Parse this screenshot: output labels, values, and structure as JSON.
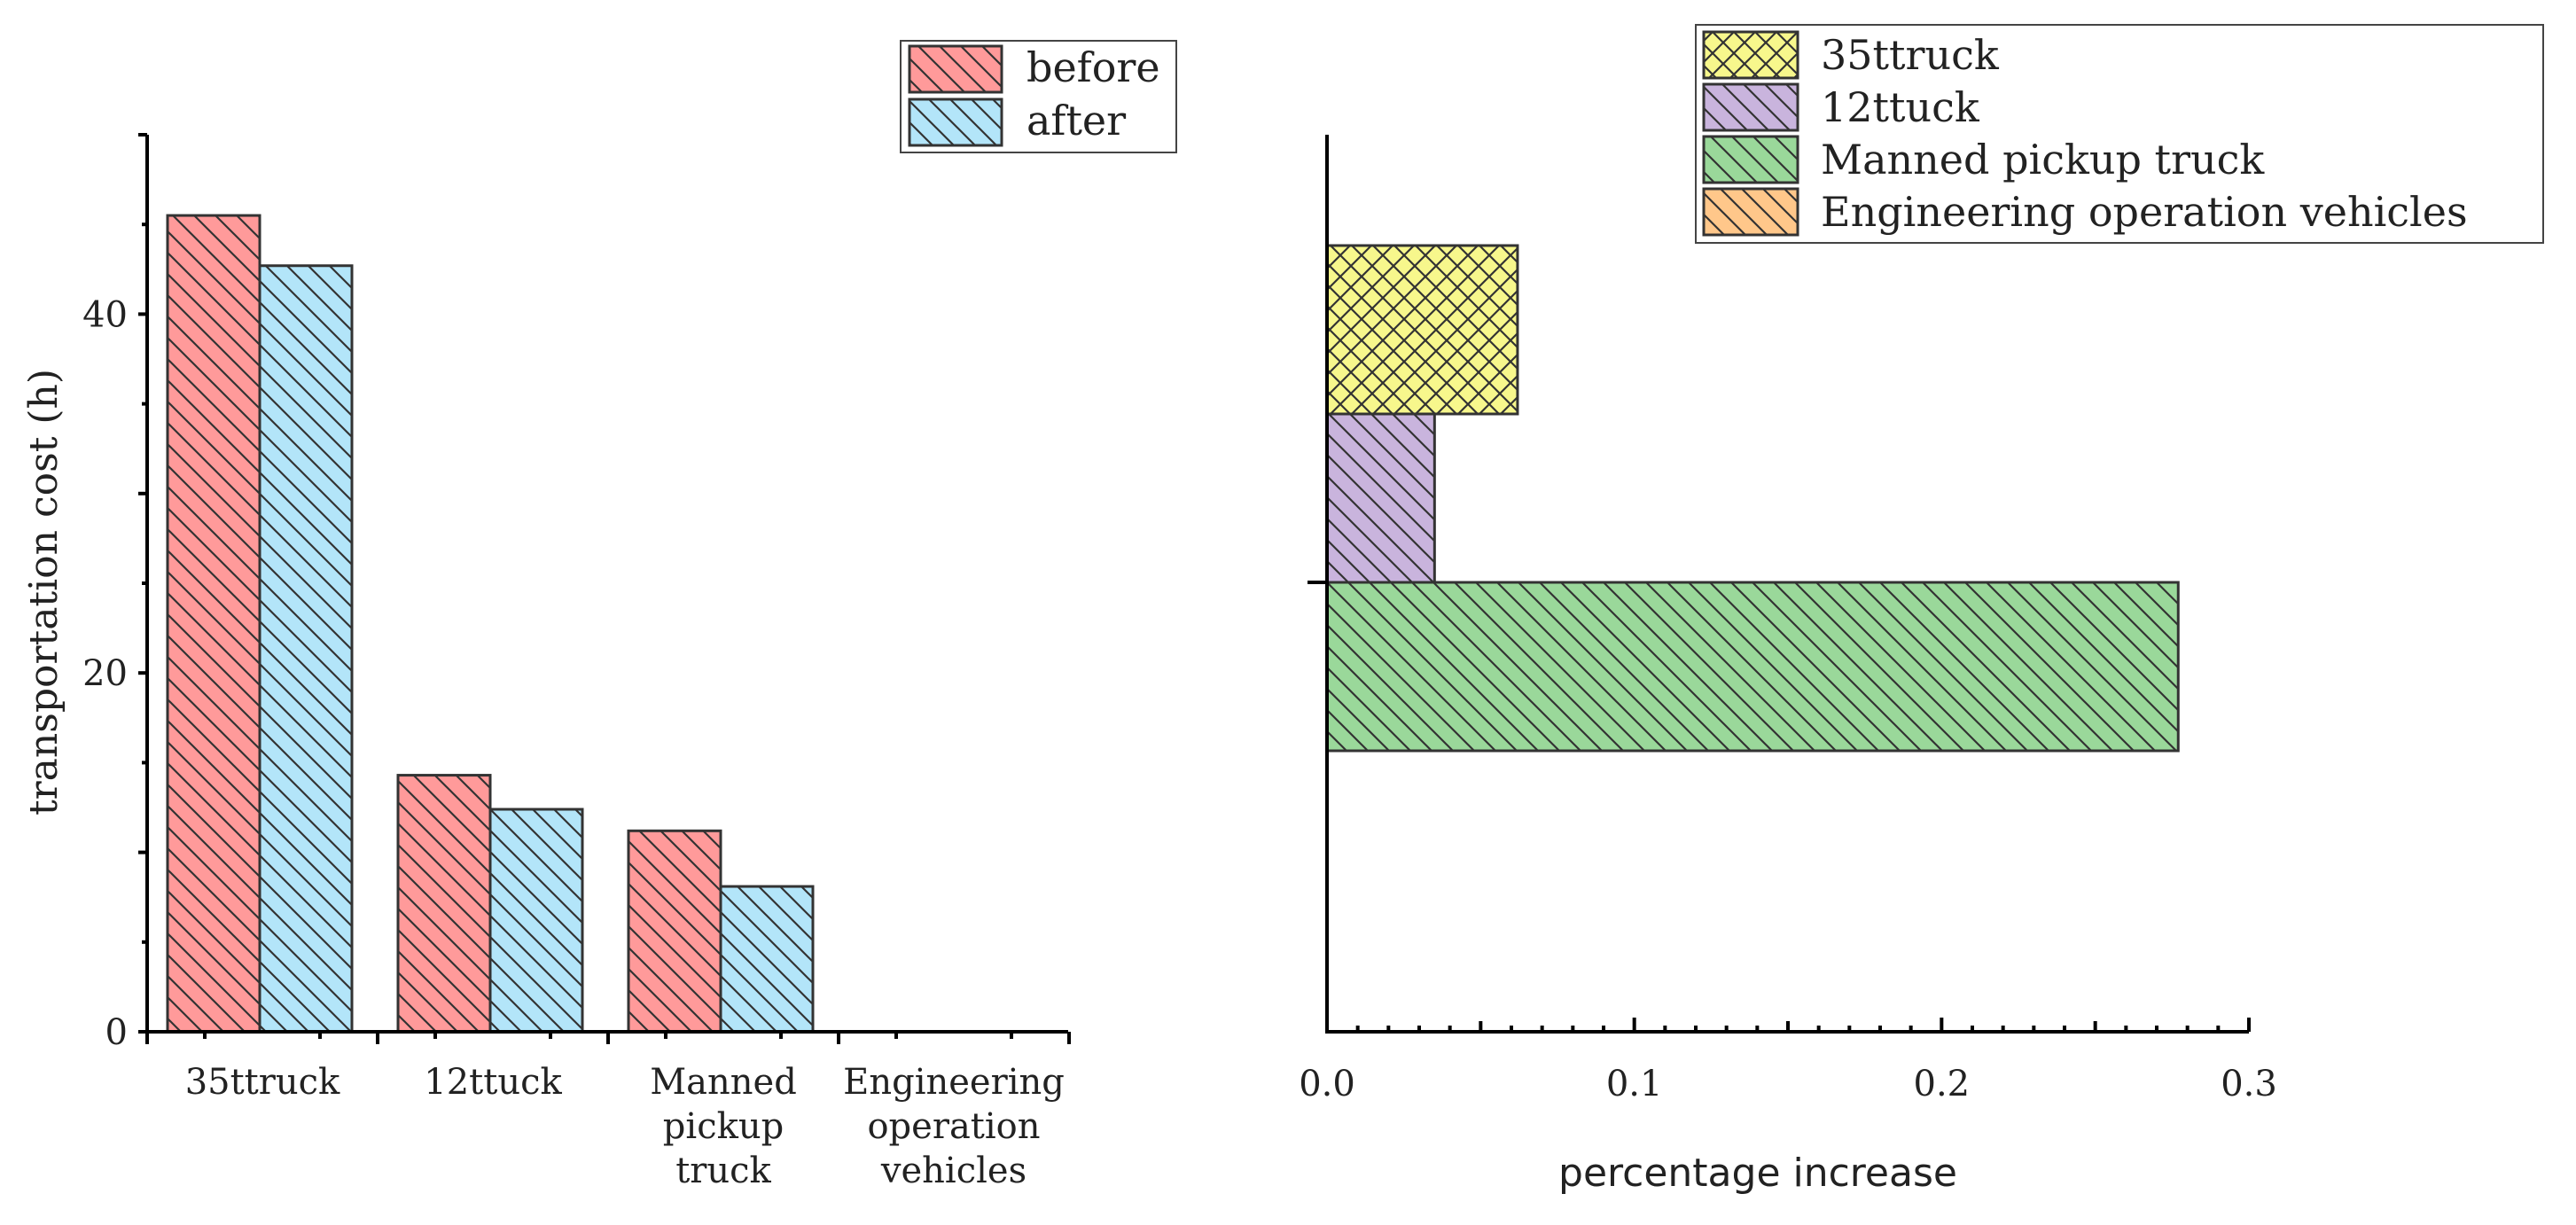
{
  "chart_data": [
    {
      "type": "bar",
      "orientation": "vertical",
      "categories": [
        "35ttruck",
        "12ttuck",
        "Manned pickup truck",
        "Engineering operation vehicles"
      ],
      "category_label_lines": [
        [
          "35ttruck"
        ],
        [
          "12ttuck"
        ],
        [
          "Manned",
          "pickup",
          "truck"
        ],
        [
          "Engineering",
          "operation",
          "vehicles"
        ]
      ],
      "series": [
        {
          "name": "before",
          "values": [
            45.5,
            14.3,
            11.2,
            0
          ],
          "color": "#ff9a9a",
          "hatch": "backslash"
        },
        {
          "name": "after",
          "values": [
            42.7,
            12.4,
            8.1,
            0
          ],
          "color": "#b3e5f9",
          "hatch": "backslash"
        }
      ],
      "ylabel": "transportation cost (h)",
      "xlabel": "",
      "ylim": [
        0,
        50
      ],
      "yticks": [
        0,
        20,
        40
      ],
      "ytick_labels": [
        "0",
        "20",
        "40"
      ],
      "grid": false,
      "legend_position": "top-right"
    },
    {
      "type": "bar",
      "orientation": "horizontal",
      "categories": [
        "35ttruck",
        "12ttuck",
        "Manned pickup truck",
        "Engineering operation vehicles"
      ],
      "values": [
        0.062,
        0.035,
        0.277,
        0.0
      ],
      "colors": [
        "#f7f78c",
        "#c9b4dd",
        "#9ad89a",
        "#ffc78a"
      ],
      "hatches": [
        "cross",
        "backslash",
        "backslash",
        "backslash"
      ],
      "xlabel": "percentage increase",
      "ylabel": "",
      "xlim": [
        0,
        0.3
      ],
      "xticks": [
        0,
        0.1,
        0.2,
        0.3
      ],
      "xtick_labels": [
        "0.0",
        "0.1",
        "0.2",
        "0.3"
      ],
      "grid": false,
      "legend_position": "top-right"
    }
  ]
}
